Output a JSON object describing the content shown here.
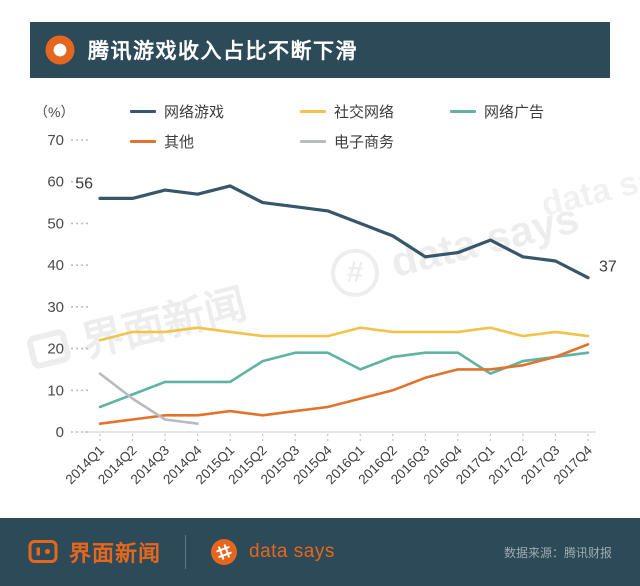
{
  "header": {
    "title": "腾讯游戏收入占比不断下滑"
  },
  "colors": {
    "navy_bar": "#2c4a58",
    "accent_orange": "#e5671e",
    "axis_text": "#4a4a4a"
  },
  "chart_data": {
    "type": "line",
    "unit_label": "（%）",
    "ylim": [
      0,
      70
    ],
    "yticks": [
      0,
      10,
      20,
      30,
      40,
      50,
      60,
      70
    ],
    "grid": false,
    "legend_position": "top",
    "categories": [
      "2014Q1",
      "2014Q2",
      "2014Q3",
      "2014Q4",
      "2015Q1",
      "2015Q2",
      "2015Q3",
      "2015Q4",
      "2016Q1",
      "2016Q2",
      "2016Q3",
      "2016Q4",
      "2017Q1",
      "2017Q2",
      "2017Q3",
      "2017Q4"
    ],
    "series": [
      {
        "name": "网络游戏",
        "color": "#35566b",
        "values": [
          56,
          56,
          58,
          57,
          59,
          55,
          54,
          53,
          50,
          47,
          42,
          43,
          46,
          42,
          41,
          37
        ]
      },
      {
        "name": "社交网络",
        "color": "#f2c24a",
        "values": [
          22,
          24,
          24,
          25,
          24,
          23,
          23,
          23,
          25,
          24,
          24,
          24,
          25,
          23,
          24,
          23
        ]
      },
      {
        "name": "网络广告",
        "color": "#5fb3a3",
        "values": [
          6,
          9,
          12,
          12,
          12,
          17,
          19,
          19,
          15,
          18,
          19,
          19,
          14,
          17,
          18,
          19
        ]
      },
      {
        "name": "其他",
        "color": "#e2732d",
        "values": [
          2,
          3,
          4,
          4,
          5,
          4,
          5,
          6,
          8,
          10,
          13,
          15,
          15,
          16,
          18,
          21
        ]
      },
      {
        "name": "电子商务",
        "color": "#b9bcbd",
        "values": [
          14,
          8,
          3,
          2,
          null,
          null,
          null,
          null,
          null,
          null,
          null,
          null,
          null,
          null,
          null,
          null
        ]
      }
    ],
    "annotations": [
      {
        "series": 0,
        "point": 0,
        "text": "56",
        "position": "left"
      },
      {
        "series": 0,
        "point": 15,
        "text": "37",
        "position": "right"
      }
    ]
  },
  "watermarks": {
    "jiemian": "界面新闻",
    "datasays": "data says"
  },
  "footer": {
    "brand_jiemian": "界面新闻",
    "brand_datasays": "data says",
    "source": "数据来源：腾讯财报"
  }
}
